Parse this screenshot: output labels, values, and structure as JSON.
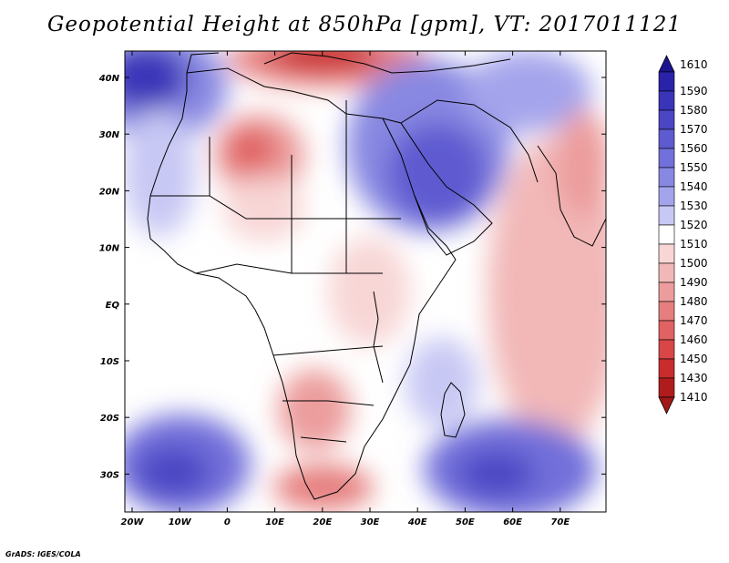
{
  "title": "Geopotential Height at 850hPa [gpm], VT: 2017011121",
  "credit": "GrADS: IGES/COLA",
  "map": {
    "variable": "Geopotential Height",
    "level": "850hPa",
    "units": "gpm",
    "valid_time": "2017011121",
    "lon_ticks": [
      "20W",
      "10W",
      "0",
      "10E",
      "20E",
      "30E",
      "40E",
      "50E",
      "60E",
      "70E"
    ],
    "lat_ticks": [
      "40N",
      "30N",
      "20N",
      "10N",
      "EQ",
      "10S",
      "20S",
      "30S"
    ]
  },
  "colorbar": {
    "top_label": "1610",
    "levels": [
      {
        "label": "1590",
        "color": "#2a22a8"
      },
      {
        "label": "1580",
        "color": "#3a34b8"
      },
      {
        "label": "1570",
        "color": "#4b46c4"
      },
      {
        "label": "1560",
        "color": "#5e5ad0"
      },
      {
        "label": "1550",
        "color": "#7270da"
      },
      {
        "label": "1540",
        "color": "#8888e2"
      },
      {
        "label": "1530",
        "color": "#a4a4ec"
      },
      {
        "label": "1520",
        "color": "#c8c8f4"
      },
      {
        "label": "1510",
        "color": "#ffffff"
      },
      {
        "label": "1500",
        "color": "#f8d6d6"
      },
      {
        "label": "1490",
        "color": "#f2b8b8"
      },
      {
        "label": "1480",
        "color": "#ec9c9c"
      },
      {
        "label": "1470",
        "color": "#e67e7e"
      },
      {
        "label": "1460",
        "color": "#e06262"
      },
      {
        "label": "1450",
        "color": "#d84646"
      },
      {
        "label": "1430",
        "color": "#c82c2c"
      },
      {
        "label": "1410",
        "color": "#b01c1c"
      }
    ],
    "top_triangle_color": "#1c1490",
    "bottom_triangle_color": "#a01818"
  }
}
